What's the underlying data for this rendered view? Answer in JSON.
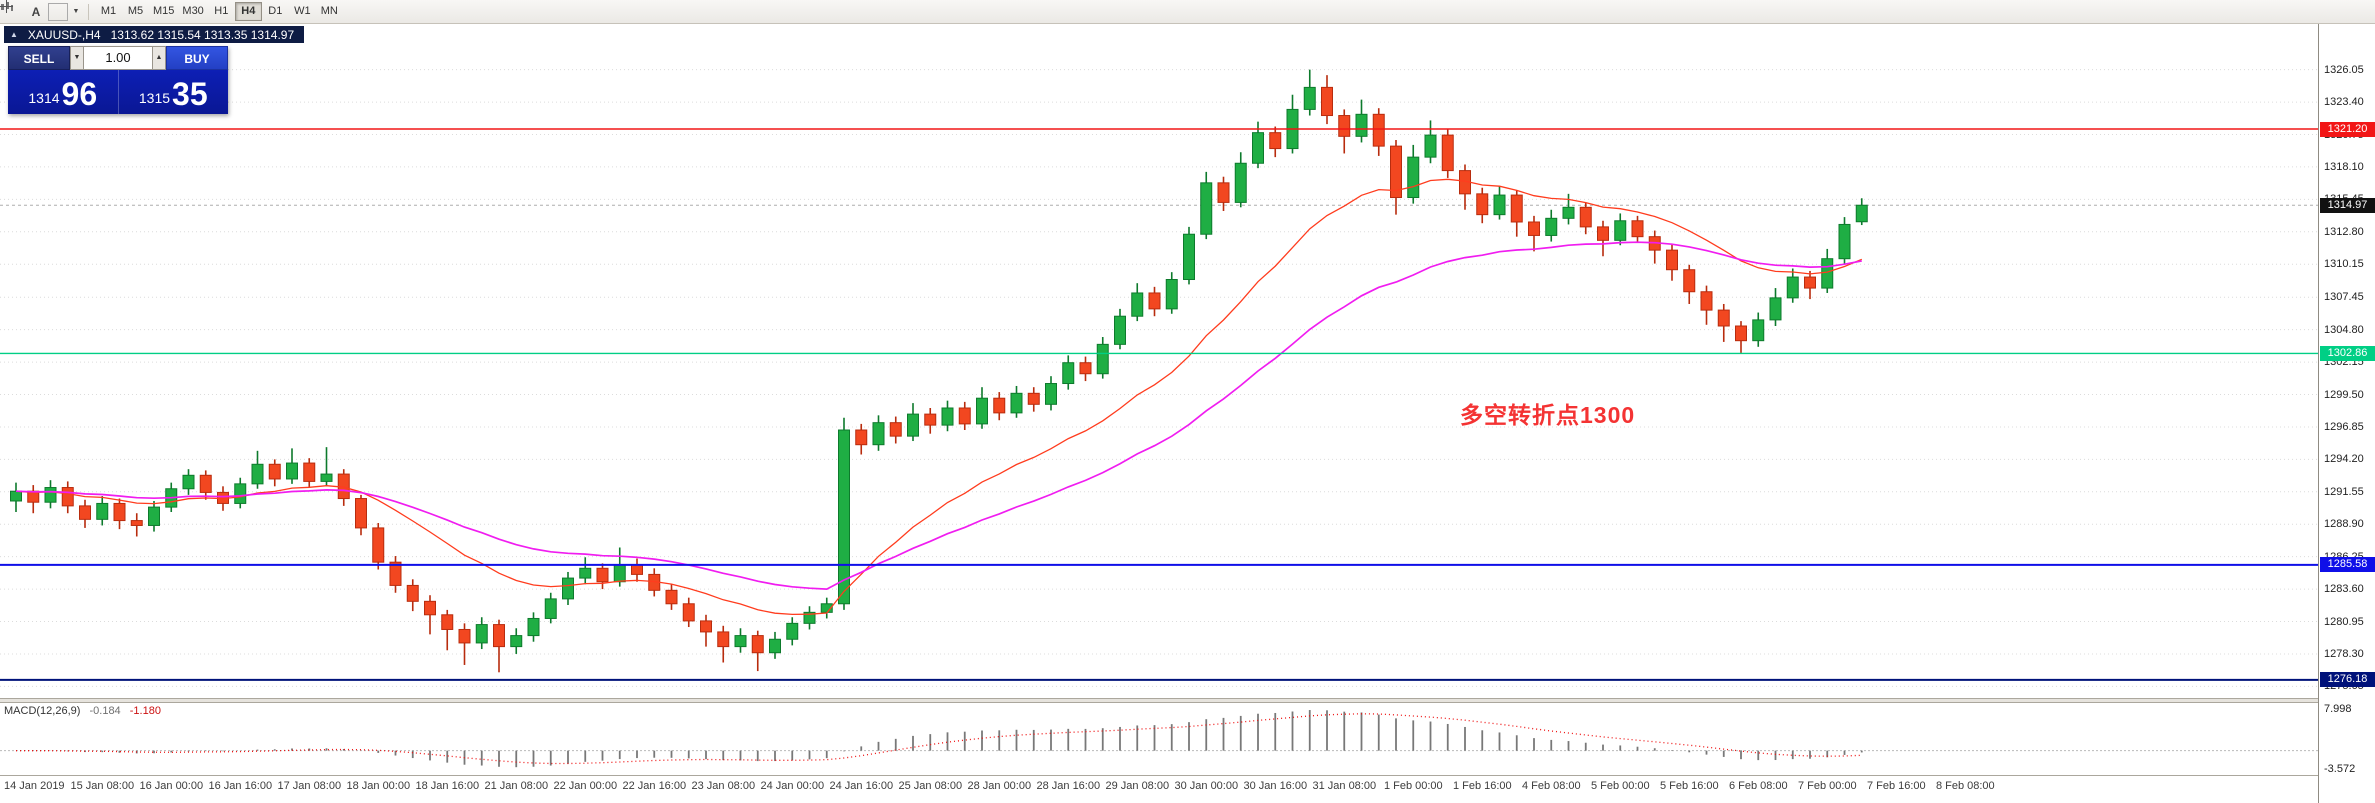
{
  "toolbar": {
    "timeframes": [
      "M1",
      "M5",
      "M15",
      "M30",
      "H1",
      "H4",
      "D1",
      "W1",
      "MN"
    ],
    "active_timeframe": "H4",
    "text_tool_label": "A"
  },
  "icons": {
    "title_marker": "▲",
    "spinner_down": "▼",
    "spinner_up": "▲",
    "dropdown": "▼"
  },
  "chart_header": {
    "symbol_tf": "XAUUSD-,H4",
    "ohlc": "1313.62 1315.54 1313.35 1314.97"
  },
  "trade_panel": {
    "sell_label": "SELL",
    "buy_label": "BUY",
    "volume": "1.00",
    "sell_price_main": "1314",
    "sell_price_pips": "96",
    "buy_price_main": "1315",
    "buy_price_pips": "35"
  },
  "annotation": {
    "text": "多空转折点1300",
    "color": "#f43333"
  },
  "chart_data": {
    "type": "candlestick",
    "symbol": "XAUUSD-",
    "timeframe": "H4",
    "ylim": [
      1274.7,
      1329.78
    ],
    "y_ticks": [
      1326.05,
      1323.4,
      1320.75,
      1318.1,
      1315.45,
      1312.8,
      1310.15,
      1307.45,
      1304.8,
      1302.15,
      1299.5,
      1296.85,
      1294.2,
      1291.55,
      1288.9,
      1286.25,
      1283.6,
      1280.95,
      1278.3,
      1275.65
    ],
    "time_labels": [
      "14 Jan 2019",
      "15 Jan 08:00",
      "16 Jan 00:00",
      "16 Jan 16:00",
      "17 Jan 08:00",
      "18 Jan 00:00",
      "18 Jan 16:00",
      "21 Jan 08:00",
      "22 Jan 00:00",
      "22 Jan 16:00",
      "23 Jan 08:00",
      "24 Jan 00:00",
      "24 Jan 16:00",
      "25 Jan 08:00",
      "28 Jan 00:00",
      "28 Jan 16:00",
      "29 Jan 08:00",
      "30 Jan 00:00",
      "30 Jan 16:00",
      "31 Jan 08:00",
      "1 Feb 00:00",
      "1 Feb 16:00",
      "4 Feb 08:00",
      "5 Feb 00:00",
      "5 Feb 16:00",
      "6 Feb 08:00",
      "7 Feb 00:00",
      "7 Feb 16:00",
      "8 Feb 08:00"
    ],
    "colors": {
      "up": "#1fae44",
      "up_border": "#0d7a2c",
      "down": "#f24720",
      "down_border": "#b82c0e",
      "grid": "#dcdcdc"
    },
    "moving_averages": [
      {
        "name": "fast-ma",
        "period": 16,
        "color": "#ff3c1e",
        "width": 1.3
      },
      {
        "name": "slow-ma",
        "period": 34,
        "color": "#f01df0",
        "width": 1.7
      }
    ],
    "hlines": [
      {
        "name": "resistance-line-1321",
        "price": 1321.2,
        "label": "1321.20",
        "color": "#f21616",
        "width": 1.4
      },
      {
        "name": "pivot-line-1302",
        "price": 1302.86,
        "label": "1302.86",
        "color": "#00cf85",
        "width": 1.4
      },
      {
        "name": "support-line-1285",
        "price": 1285.58,
        "label": "1285.58",
        "color": "#0f0fe8",
        "width": 2
      },
      {
        "name": "support-line-1276",
        "price": 1276.18,
        "label": "1276.18",
        "color": "#00127a",
        "width": 2
      }
    ],
    "bid_line": {
      "price": 1314.97,
      "label": "1314.97",
      "badge_color": "#111111",
      "line_color": "#aeaeae"
    },
    "macd": {
      "label": "MACD(12,26,9)",
      "fast": 12,
      "slow": 26,
      "signal": 9,
      "value_main": "-0.184",
      "value_signal": "-1.180",
      "ylim": [
        -4.7,
        9.2
      ],
      "axis_top_value": 7.998,
      "axis_bottom_value": -3.572,
      "hist_color": "#787878",
      "signal_color": "#ee1111"
    },
    "ohlc_order": [
      "open",
      "high",
      "low",
      "close"
    ],
    "candles": [
      [
        1290.8,
        1292.3,
        1289.9,
        1291.6
      ],
      [
        1291.6,
        1292.1,
        1289.8,
        1290.7
      ],
      [
        1290.7,
        1292.5,
        1290.2,
        1291.9
      ],
      [
        1291.9,
        1292.4,
        1289.8,
        1290.4
      ],
      [
        1290.4,
        1290.9,
        1288.6,
        1289.3
      ],
      [
        1289.3,
        1291.2,
        1288.8,
        1290.6
      ],
      [
        1290.6,
        1291.0,
        1288.5,
        1289.2
      ],
      [
        1289.2,
        1289.8,
        1287.9,
        1288.8
      ],
      [
        1288.8,
        1290.8,
        1288.3,
        1290.3
      ],
      [
        1290.3,
        1292.3,
        1289.9,
        1291.8
      ],
      [
        1291.8,
        1293.4,
        1291.3,
        1292.9
      ],
      [
        1292.9,
        1293.3,
        1290.9,
        1291.5
      ],
      [
        1291.5,
        1292.0,
        1290.0,
        1290.6
      ],
      [
        1290.6,
        1292.7,
        1290.2,
        1292.2
      ],
      [
        1292.2,
        1294.9,
        1291.8,
        1293.8
      ],
      [
        1293.8,
        1294.2,
        1292.0,
        1292.6
      ],
      [
        1292.6,
        1295.1,
        1292.2,
        1293.9
      ],
      [
        1293.9,
        1294.3,
        1291.9,
        1292.4
      ],
      [
        1292.4,
        1295.2,
        1292.0,
        1293.0
      ],
      [
        1293.0,
        1293.4,
        1290.4,
        1291.0
      ],
      [
        1291.0,
        1291.3,
        1288.0,
        1288.6
      ],
      [
        1288.6,
        1289.0,
        1285.2,
        1285.8
      ],
      [
        1285.8,
        1286.3,
        1283.3,
        1283.9
      ],
      [
        1283.9,
        1284.4,
        1281.8,
        1282.6
      ],
      [
        1282.6,
        1283.1,
        1279.9,
        1281.5
      ],
      [
        1281.5,
        1281.9,
        1278.6,
        1280.3
      ],
      [
        1280.3,
        1280.8,
        1277.4,
        1279.2
      ],
      [
        1279.2,
        1281.3,
        1278.7,
        1280.7
      ],
      [
        1280.7,
        1281.1,
        1276.8,
        1278.9
      ],
      [
        1278.9,
        1280.4,
        1278.3,
        1279.8
      ],
      [
        1279.8,
        1281.7,
        1279.3,
        1281.2
      ],
      [
        1281.2,
        1283.3,
        1280.8,
        1282.8
      ],
      [
        1282.8,
        1285.0,
        1282.3,
        1284.5
      ],
      [
        1284.5,
        1286.2,
        1284.0,
        1285.3
      ],
      [
        1285.3,
        1285.7,
        1283.6,
        1284.2
      ],
      [
        1284.2,
        1287.0,
        1283.8,
        1285.6
      ],
      [
        1285.6,
        1286.1,
        1284.2,
        1284.8
      ],
      [
        1284.8,
        1285.3,
        1283.0,
        1283.5
      ],
      [
        1283.5,
        1284.0,
        1281.9,
        1282.4
      ],
      [
        1282.4,
        1282.9,
        1280.5,
        1281.0
      ],
      [
        1281.0,
        1281.5,
        1278.9,
        1280.1
      ],
      [
        1280.1,
        1280.6,
        1277.6,
        1278.9
      ],
      [
        1278.9,
        1280.4,
        1278.4,
        1279.8
      ],
      [
        1279.8,
        1280.2,
        1276.9,
        1278.4
      ],
      [
        1278.4,
        1280.1,
        1277.9,
        1279.5
      ],
      [
        1279.5,
        1281.3,
        1279.0,
        1280.8
      ],
      [
        1280.8,
        1282.2,
        1280.3,
        1281.7
      ],
      [
        1281.7,
        1282.9,
        1281.2,
        1282.4
      ],
      [
        1282.4,
        1297.6,
        1281.9,
        1296.6
      ],
      [
        1296.6,
        1297.1,
        1294.6,
        1295.4
      ],
      [
        1295.4,
        1297.8,
        1294.9,
        1297.2
      ],
      [
        1297.2,
        1297.7,
        1295.5,
        1296.1
      ],
      [
        1296.1,
        1298.8,
        1295.7,
        1297.9
      ],
      [
        1297.9,
        1298.4,
        1296.3,
        1297.0
      ],
      [
        1297.0,
        1299.0,
        1296.5,
        1298.4
      ],
      [
        1298.4,
        1298.9,
        1296.6,
        1297.1
      ],
      [
        1297.1,
        1300.1,
        1296.7,
        1299.2
      ],
      [
        1299.2,
        1299.7,
        1297.4,
        1298.0
      ],
      [
        1298.0,
        1300.2,
        1297.6,
        1299.6
      ],
      [
        1299.6,
        1300.1,
        1298.1,
        1298.7
      ],
      [
        1298.7,
        1301.0,
        1298.2,
        1300.4
      ],
      [
        1300.4,
        1302.7,
        1299.9,
        1302.1
      ],
      [
        1302.1,
        1302.6,
        1300.6,
        1301.2
      ],
      [
        1301.2,
        1304.2,
        1300.8,
        1303.6
      ],
      [
        1303.6,
        1306.5,
        1303.2,
        1305.9
      ],
      [
        1305.9,
        1308.6,
        1305.5,
        1307.8
      ],
      [
        1307.8,
        1308.3,
        1305.9,
        1306.5
      ],
      [
        1306.5,
        1309.5,
        1306.1,
        1308.9
      ],
      [
        1308.9,
        1313.2,
        1308.5,
        1312.6
      ],
      [
        1312.6,
        1317.7,
        1312.2,
        1316.8
      ],
      [
        1316.8,
        1317.3,
        1314.5,
        1315.2
      ],
      [
        1315.2,
        1319.3,
        1314.8,
        1318.4
      ],
      [
        1318.4,
        1321.8,
        1318.0,
        1320.9
      ],
      [
        1320.9,
        1321.4,
        1318.9,
        1319.6
      ],
      [
        1319.6,
        1324.0,
        1319.2,
        1322.8
      ],
      [
        1322.8,
        1326.05,
        1322.3,
        1324.6
      ],
      [
        1324.6,
        1325.6,
        1321.6,
        1322.3
      ],
      [
        1322.3,
        1322.8,
        1319.2,
        1320.6
      ],
      [
        1320.6,
        1323.6,
        1320.1,
        1322.4
      ],
      [
        1322.4,
        1322.9,
        1319.0,
        1319.8
      ],
      [
        1319.8,
        1320.3,
        1314.2,
        1315.6
      ],
      [
        1315.6,
        1319.9,
        1315.1,
        1318.9
      ],
      [
        1318.9,
        1321.9,
        1318.4,
        1320.7
      ],
      [
        1320.7,
        1321.2,
        1317.2,
        1317.8
      ],
      [
        1317.8,
        1318.3,
        1314.6,
        1315.9
      ],
      [
        1315.9,
        1316.4,
        1313.5,
        1314.2
      ],
      [
        1314.2,
        1316.5,
        1313.8,
        1315.8
      ],
      [
        1315.8,
        1316.2,
        1312.4,
        1313.6
      ],
      [
        1313.6,
        1314.1,
        1311.2,
        1312.5
      ],
      [
        1312.5,
        1314.6,
        1312.0,
        1313.9
      ],
      [
        1313.9,
        1315.9,
        1313.4,
        1314.8
      ],
      [
        1314.8,
        1315.2,
        1312.6,
        1313.2
      ],
      [
        1313.2,
        1313.7,
        1310.8,
        1312.1
      ],
      [
        1312.1,
        1314.3,
        1311.7,
        1313.7
      ],
      [
        1313.7,
        1314.1,
        1311.9,
        1312.4
      ],
      [
        1312.4,
        1312.9,
        1310.2,
        1311.3
      ],
      [
        1311.3,
        1311.8,
        1308.8,
        1309.7
      ],
      [
        1309.7,
        1310.1,
        1306.9,
        1307.9
      ],
      [
        1307.9,
        1308.4,
        1305.2,
        1306.4
      ],
      [
        1306.4,
        1306.9,
        1303.8,
        1305.1
      ],
      [
        1305.1,
        1305.5,
        1302.9,
        1303.9
      ],
      [
        1303.9,
        1306.2,
        1303.4,
        1305.6
      ],
      [
        1305.6,
        1308.2,
        1305.1,
        1307.4
      ],
      [
        1307.4,
        1309.8,
        1307.0,
        1309.1
      ],
      [
        1309.1,
        1309.6,
        1307.3,
        1308.2
      ],
      [
        1308.2,
        1311.4,
        1307.8,
        1310.6
      ],
      [
        1310.6,
        1314.0,
        1310.2,
        1313.4
      ],
      [
        1313.62,
        1315.54,
        1313.35,
        1314.97
      ]
    ]
  }
}
